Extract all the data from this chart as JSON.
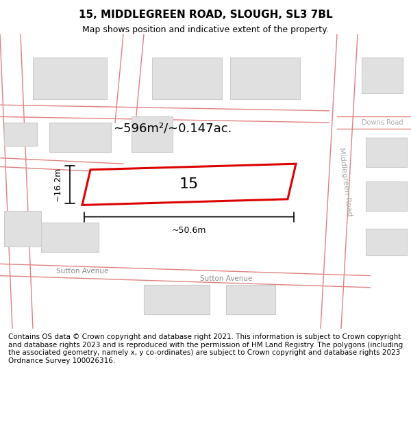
{
  "title": "15, MIDDLEGREEN ROAD, SLOUGH, SL3 7BL",
  "subtitle": "Map shows position and indicative extent of the property.",
  "footer": "Contains OS data © Crown copyright and database right 2021. This information is subject to Crown copyright and database rights 2023 and is reproduced with the permission of HM Land Registry. The polygons (including the associated geometry, namely x, y co-ordinates) are subject to Crown copyright and database rights 2023 Ordnance Survey 100026316.",
  "area_label": "~596m²/~0.147ac.",
  "width_label": "~50.6m",
  "height_label": "~16.2m",
  "property_number": "15",
  "bg_color": "#ffffff",
  "map_bg": "#f9f9f9",
  "road_line_color": "#e08080",
  "building_fill": "#e0e0e0",
  "building_edge": "#cccccc",
  "highlight_fill": "#ffffff",
  "highlight_edge": "#dd0000",
  "dim_line_color": "#222222",
  "road_label_color": "#aaaaaa",
  "street_label_color": "#888888"
}
